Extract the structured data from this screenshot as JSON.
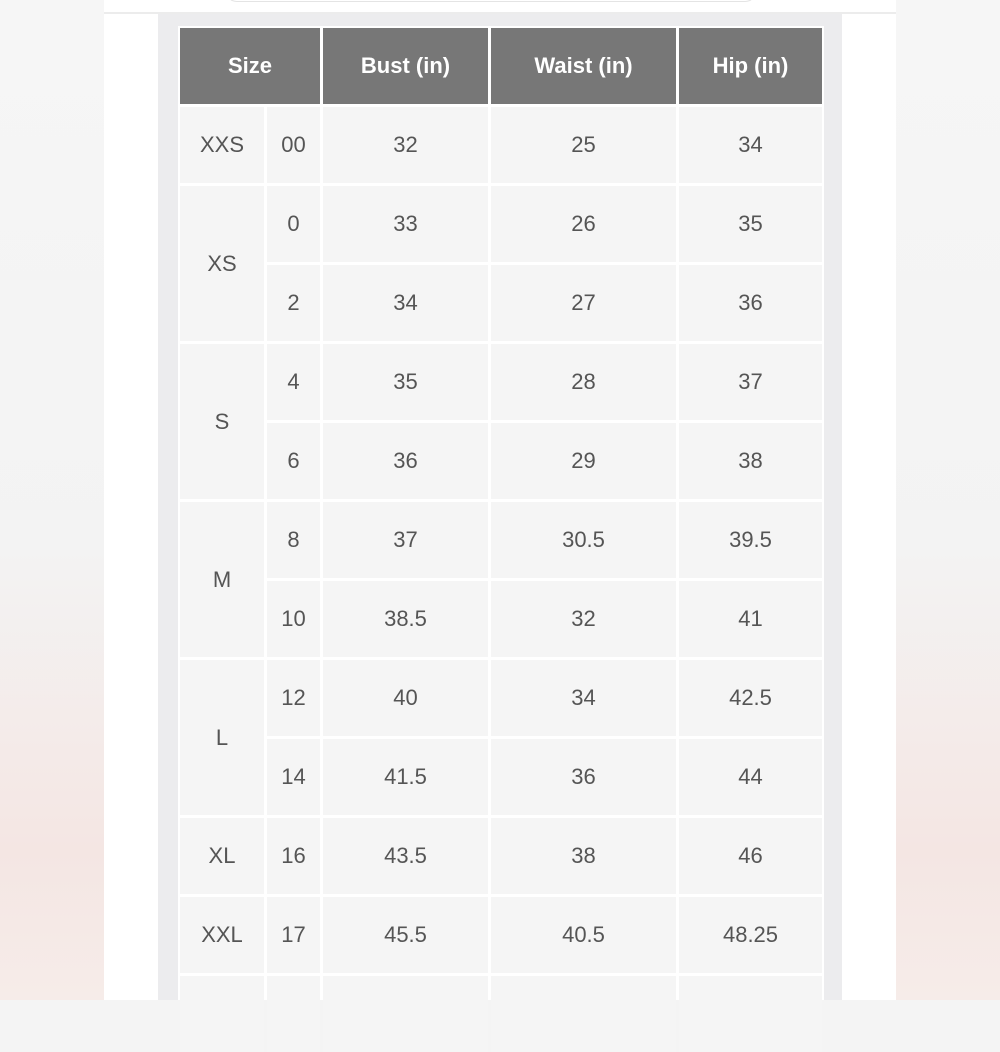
{
  "table": {
    "headers": [
      "Size",
      "Bust (in)",
      "Waist (in)",
      "Hip (in)"
    ],
    "rows": [
      {
        "size": "XXS",
        "num": "00",
        "bust": "32",
        "waist": "25",
        "hip": "34"
      },
      {
        "size": "XS",
        "num": "0",
        "bust": "33",
        "waist": "26",
        "hip": "35"
      },
      {
        "size": "",
        "num": "2",
        "bust": "34",
        "waist": "27",
        "hip": "36"
      },
      {
        "size": "S",
        "num": "4",
        "bust": "35",
        "waist": "28",
        "hip": "37"
      },
      {
        "size": "",
        "num": "6",
        "bust": "36",
        "waist": "29",
        "hip": "38"
      },
      {
        "size": "M",
        "num": "8",
        "bust": "37",
        "waist": "30.5",
        "hip": "39.5"
      },
      {
        "size": "",
        "num": "10",
        "bust": "38.5",
        "waist": "32",
        "hip": "41"
      },
      {
        "size": "L",
        "num": "12",
        "bust": "40",
        "waist": "34",
        "hip": "42.5"
      },
      {
        "size": "",
        "num": "14",
        "bust": "41.5",
        "waist": "36",
        "hip": "44"
      },
      {
        "size": "XL",
        "num": "16",
        "bust": "43.5",
        "waist": "38",
        "hip": "46"
      },
      {
        "size": "XXL",
        "num": "17",
        "bust": "45.5",
        "waist": "40.5",
        "hip": "48.25"
      }
    ],
    "colors": {
      "header_bg": "#777777",
      "cell_bg": "#f5f5f5",
      "text": "#555555"
    }
  }
}
